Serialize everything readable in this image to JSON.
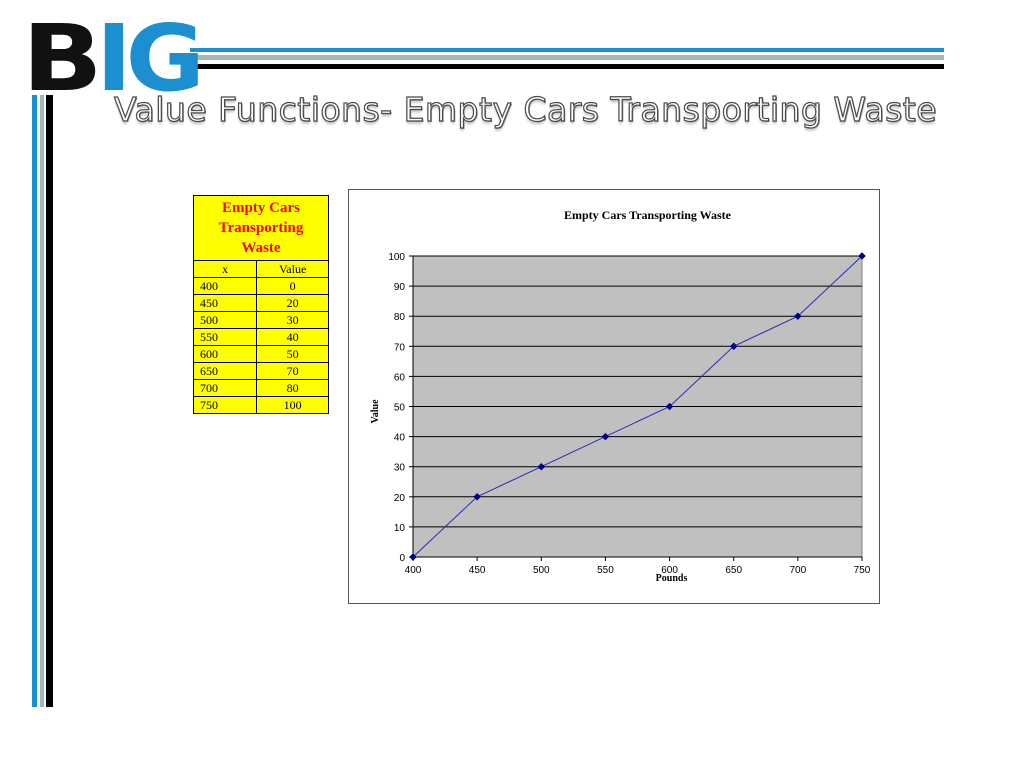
{
  "logo": {
    "part1": "B",
    "part2": "IG"
  },
  "title": "Value Functions- Empty Cars Transporting Waste",
  "table": {
    "caption": "Empty Cars Transporting Waste",
    "headers": [
      "x",
      "Value"
    ],
    "rows": [
      [
        "400",
        "0"
      ],
      [
        "450",
        "20"
      ],
      [
        "500",
        "30"
      ],
      [
        "550",
        "40"
      ],
      [
        "600",
        "50"
      ],
      [
        "650",
        "70"
      ],
      [
        "700",
        "80"
      ],
      [
        "750",
        "100"
      ]
    ]
  },
  "colors": {
    "brand_blue": "#1b8fd0",
    "table_fill": "#ffff00",
    "table_caption": "#ff0000",
    "plot_area": "#c0c0c0",
    "series_line": "#2a2ab0",
    "series_marker": "#000080"
  },
  "chart_data": {
    "type": "line",
    "title": "Empty Cars Transporting Waste",
    "xlabel": "Pounds",
    "ylabel": "Value",
    "x": [
      400,
      450,
      500,
      550,
      600,
      650,
      700,
      750
    ],
    "series": [
      {
        "values": [
          0,
          20,
          30,
          40,
          50,
          70,
          80,
          100
        ]
      }
    ],
    "xlim": [
      400,
      750
    ],
    "ylim": [
      0,
      100
    ],
    "xticks": [
      400,
      450,
      500,
      550,
      600,
      650,
      700,
      750
    ],
    "yticks": [
      0,
      10,
      20,
      30,
      40,
      50,
      60,
      70,
      80,
      90,
      100
    ],
    "grid": "horizontal",
    "legend": "none",
    "marker": "diamond"
  }
}
